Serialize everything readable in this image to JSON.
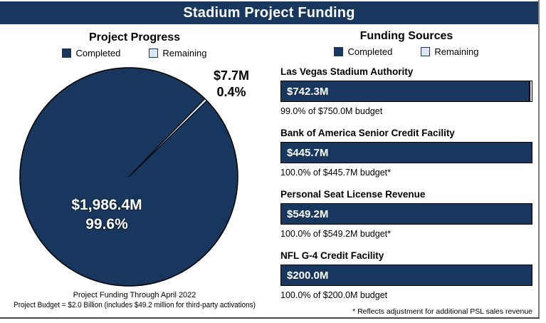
{
  "title": "Stadium Project Funding",
  "colors": {
    "navy": "#17375E",
    "light_blue": "#DCE6F1",
    "edge_gray": "#808080"
  },
  "legend": {
    "completed": "Completed",
    "remaining": "Remaining"
  },
  "left_panel": {
    "title": "Project Progress",
    "completed_label": {
      "amount": "$1,986.4M",
      "percent": "99.6%"
    },
    "remaining_label": {
      "amount": "$7.7M",
      "percent": "0.4%"
    },
    "captions": [
      "Project Funding Through April 2022",
      "Project Budget = $2.0 Billion (includes $49.2 million for third-party activations)"
    ]
  },
  "right_panel": {
    "title": "Funding Sources",
    "sources": [
      {
        "name": "Las Vegas Stadium Authority",
        "amount": "$742.3M",
        "caption": "99.0% of $750.0M budget",
        "remaining_pct": 1.0
      },
      {
        "name": "Bank of America Senior Credit Facility",
        "amount": "$445.7M",
        "caption": "100.0% of $445.7M budget*",
        "remaining_pct": 0
      },
      {
        "name": "Personal Seat License Revenue",
        "amount": "$549.2M",
        "caption": "100.0% of $549.2M budget*",
        "remaining_pct": 0
      },
      {
        "name": "NFL G-4 Credit Facility",
        "amount": "$200.0M",
        "caption": "100.0% of $200.0M budget",
        "remaining_pct": 0
      }
    ],
    "footnote": "* Reflects adjustment for additional PSL sales revenue"
  },
  "chart_data": [
    {
      "type": "pie",
      "title": "Project Progress",
      "labels": [
        "Completed",
        "Remaining"
      ],
      "values_musd": [
        1986.4,
        7.7
      ],
      "percentages": [
        99.6,
        0.4
      ],
      "unit": "$M",
      "colors": [
        "#17375E",
        "#DCE6F1"
      ],
      "legend_position": "top",
      "slice_center_angle_deg": 45,
      "notes": [
        "Project Funding Through April 2022",
        "Project Budget = $2.0 Billion (includes $49.2 million for third-party activations)"
      ]
    },
    {
      "type": "bar",
      "orientation": "horizontal",
      "title": "Funding Sources",
      "categories": [
        "Las Vegas Stadium Authority",
        "Bank of America Senior Credit Facility",
        "Personal Seat License Revenue",
        "NFL G-4 Credit Facility"
      ],
      "series": [
        {
          "name": "Completed",
          "values_musd": [
            742.3,
            445.7,
            549.2,
            200.0
          ]
        },
        {
          "name": "Remaining",
          "values_musd": [
            7.7,
            0,
            0,
            0
          ]
        }
      ],
      "budgets_musd": [
        750.0,
        445.7,
        549.2,
        200.0
      ],
      "pct_of_budget": [
        99.0,
        100.0,
        100.0,
        100.0
      ],
      "colors": [
        "#17375E",
        "#DCE6F1"
      ],
      "legend_position": "top",
      "footnote": "* Reflects adjustment for additional PSL sales revenue"
    }
  ]
}
